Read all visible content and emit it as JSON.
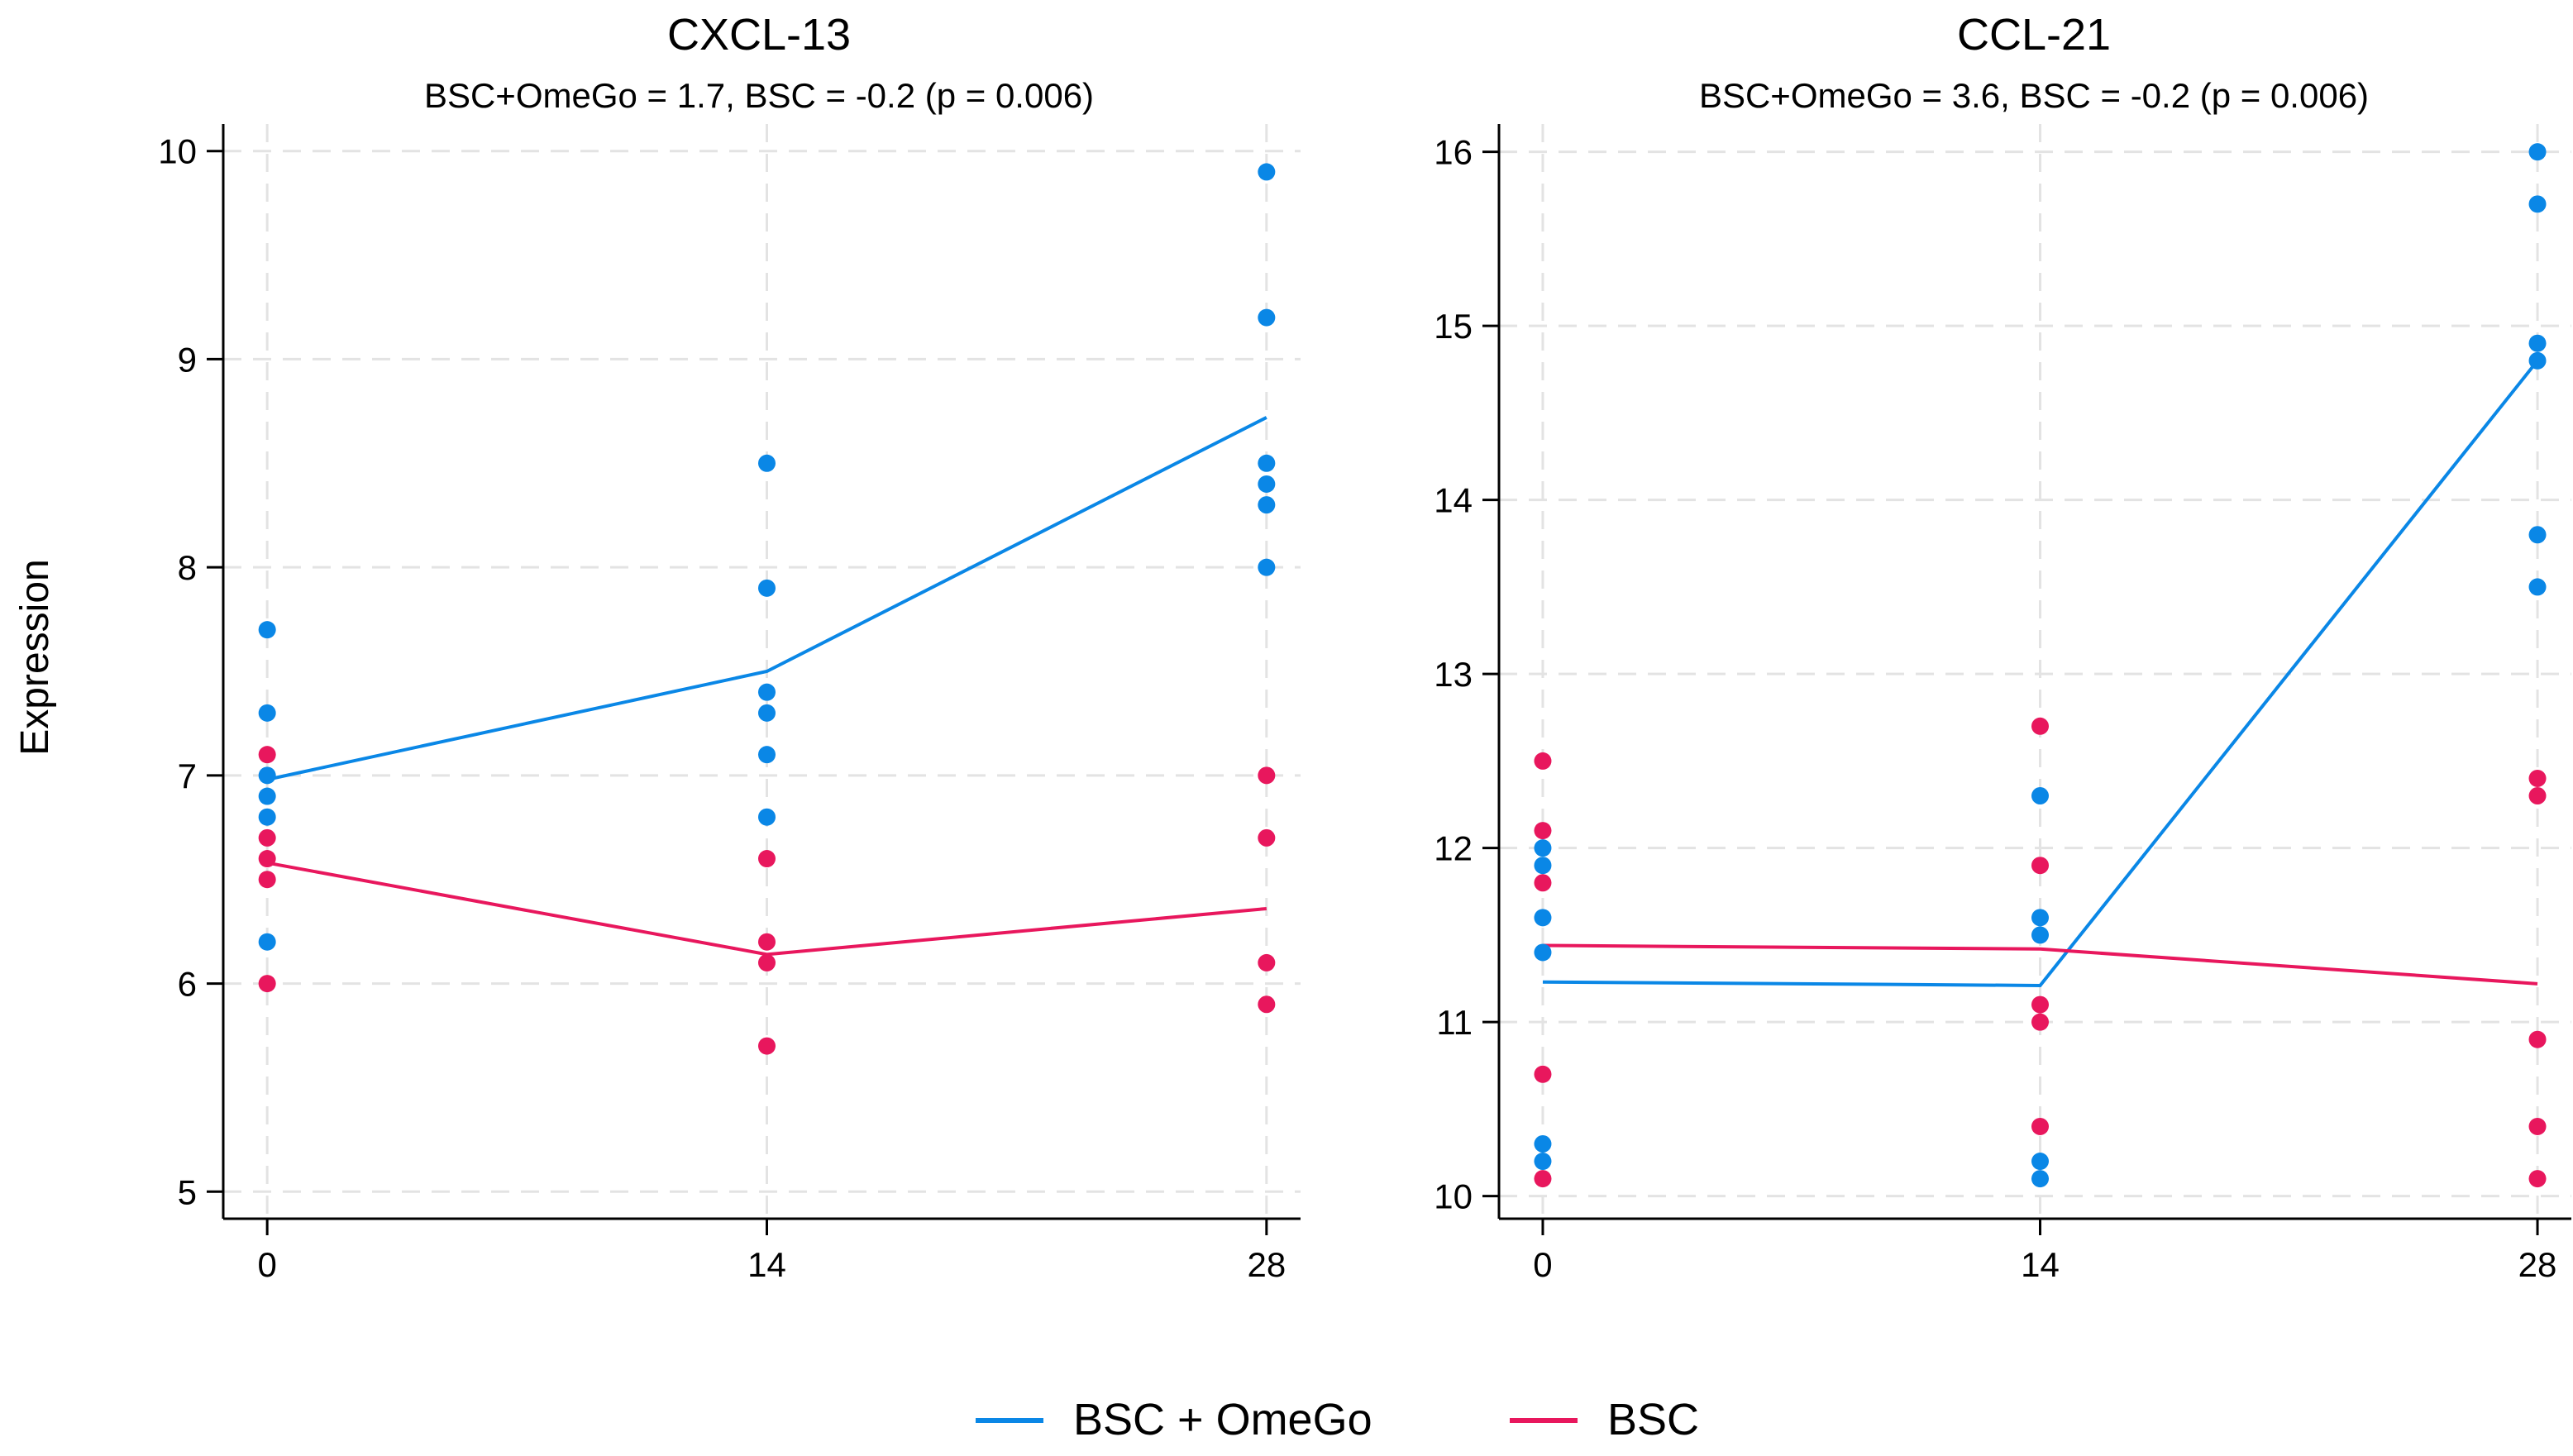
{
  "figure": {
    "ylabel": "Expression"
  },
  "colors": {
    "omego": "#0a87e6",
    "bsc": "#e8175d",
    "grid": "#e3e3e3",
    "axis": "#000000"
  },
  "legend": {
    "items": [
      {
        "label": "BSC + OmeGo",
        "color": "#0a87e6"
      },
      {
        "label": "BSC",
        "color": "#e8175d"
      }
    ],
    "placement": "bottom-center"
  },
  "chart_data": [
    {
      "type": "line",
      "title": "CXCL-13",
      "subtitle": "BSC+OmeGo = 1.7,  BSC = -0.2 (p = 0.006)",
      "xlabel": "",
      "ylabel": "Expression",
      "x_ticks": [
        "0",
        "14",
        "28"
      ],
      "y_ticks": [
        "5",
        "6",
        "7",
        "8",
        "9",
        "10"
      ],
      "xlim": [
        -1,
        29
      ],
      "ylim": [
        4.87,
        10.13
      ],
      "grid": true,
      "series": [
        {
          "name": "BSC + OmeGo",
          "color": "#0a87e6",
          "line": {
            "x": [
              0,
              14,
              28
            ],
            "y": [
              6.98,
              7.5,
              8.72
            ]
          },
          "points": [
            {
              "x": 0,
              "y": [
                7.7,
                7.3,
                7.0,
                6.9,
                6.8,
                6.2
              ]
            },
            {
              "x": 14,
              "y": [
                8.5,
                7.9,
                7.4,
                7.3,
                7.1,
                6.8
              ]
            },
            {
              "x": 28,
              "y": [
                9.9,
                9.2,
                8.5,
                8.4,
                8.3,
                8.0
              ]
            }
          ]
        },
        {
          "name": "BSC",
          "color": "#e8175d",
          "line": {
            "x": [
              0,
              14,
              28
            ],
            "y": [
              6.58,
              6.14,
              6.36
            ]
          },
          "points": [
            {
              "x": 0,
              "y": [
                7.1,
                6.7,
                6.6,
                6.5,
                6.0
              ]
            },
            {
              "x": 14,
              "y": [
                6.6,
                6.2,
                6.1,
                5.7
              ]
            },
            {
              "x": 28,
              "y": [
                7.0,
                6.7,
                6.1,
                5.9
              ]
            }
          ]
        }
      ]
    },
    {
      "type": "line",
      "title": "CCL-21",
      "subtitle": "BSC+OmeGo = 3.6,  BSC = -0.2 (p = 0.006)",
      "xlabel": "",
      "ylabel": "",
      "x_ticks": [
        "0",
        "14",
        "28"
      ],
      "y_ticks": [
        "10",
        "11",
        "12",
        "13",
        "14",
        "15",
        "16"
      ],
      "xlim": [
        -1,
        29
      ],
      "ylim": [
        9.87,
        16.16
      ],
      "grid": true,
      "series": [
        {
          "name": "BSC + OmeGo",
          "color": "#0a87e6",
          "line": {
            "x": [
              0,
              14,
              28
            ],
            "y": [
              11.23,
              11.21,
              14.8
            ]
          },
          "points": [
            {
              "x": 0,
              "y": [
                12.0,
                11.9,
                11.6,
                11.4,
                10.3,
                10.2
              ]
            },
            {
              "x": 14,
              "y": [
                12.3,
                11.6,
                11.5,
                10.2,
                10.1
              ]
            },
            {
              "x": 28,
              "y": [
                16.0,
                15.7,
                14.9,
                14.8,
                13.8,
                13.5
              ]
            }
          ]
        },
        {
          "name": "BSC",
          "color": "#e8175d",
          "line": {
            "x": [
              0,
              14,
              28
            ],
            "y": [
              11.44,
              11.42,
              11.22
            ]
          },
          "points": [
            {
              "x": 0,
              "y": [
                12.5,
                12.1,
                11.8,
                10.7,
                10.1
              ]
            },
            {
              "x": 14,
              "y": [
                12.7,
                11.9,
                11.1,
                11.0,
                10.4
              ]
            },
            {
              "x": 28,
              "y": [
                12.4,
                12.3,
                10.9,
                10.4,
                10.1
              ]
            }
          ]
        }
      ]
    }
  ]
}
